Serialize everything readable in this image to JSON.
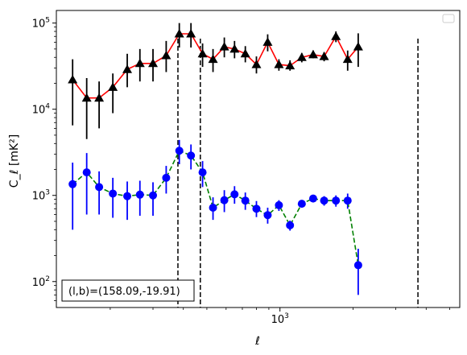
{
  "chart_data": {
    "type": "scatter",
    "xscale": "log",
    "yscale": "log",
    "xlim": [
      120,
      5500
    ],
    "ylim": [
      50,
      140000
    ],
    "xlabel": "ℓ",
    "ylabel": "C_ℓ [mK²]",
    "x_ticks": [
      {
        "value": 1000,
        "base": "10",
        "exp": "3"
      }
    ],
    "y_ticks": [
      {
        "value": 100,
        "base": "10",
        "exp": "2"
      },
      {
        "value": 1000,
        "base": "10",
        "exp": "3"
      },
      {
        "value": 10000,
        "base": "10",
        "exp": "4"
      },
      {
        "value": 100000,
        "base": "10",
        "exp": "5"
      }
    ],
    "grid": false,
    "legend": {
      "placement": "top-right",
      "entries": []
    },
    "vlines": [
      380,
      470,
      3700
    ],
    "annotation": "(l,b)=(158.09,-19.91)",
    "series": [
      {
        "marker": "triangle",
        "color": "#000000",
        "line_color": "#ff0000",
        "line_style": "solid",
        "points": [
          {
            "x": 140,
            "y": 22000,
            "lo": 6500,
            "hi": 38000
          },
          {
            "x": 160,
            "y": 13500,
            "lo": 4500,
            "hi": 23000
          },
          {
            "x": 180,
            "y": 13500,
            "lo": 6000,
            "hi": 21000
          },
          {
            "x": 205,
            "y": 18000,
            "lo": 9000,
            "hi": 26000
          },
          {
            "x": 235,
            "y": 29000,
            "lo": 18000,
            "hi": 44000
          },
          {
            "x": 265,
            "y": 34000,
            "lo": 21000,
            "hi": 50000
          },
          {
            "x": 300,
            "y": 34000,
            "lo": 21000,
            "hi": 50000
          },
          {
            "x": 340,
            "y": 42000,
            "lo": 27000,
            "hi": 62000
          },
          {
            "x": 385,
            "y": 75000,
            "lo": 52000,
            "hi": 100000
          },
          {
            "x": 430,
            "y": 75000,
            "lo": 52000,
            "hi": 100000
          },
          {
            "x": 480,
            "y": 44000,
            "lo": 31000,
            "hi": 58000
          },
          {
            "x": 530,
            "y": 38000,
            "lo": 27000,
            "hi": 50000
          },
          {
            "x": 590,
            "y": 53000,
            "lo": 40000,
            "hi": 68000
          },
          {
            "x": 650,
            "y": 50000,
            "lo": 39000,
            "hi": 62000
          },
          {
            "x": 720,
            "y": 44000,
            "lo": 35000,
            "hi": 54000
          },
          {
            "x": 800,
            "y": 33000,
            "lo": 26000,
            "hi": 41000
          },
          {
            "x": 890,
            "y": 60000,
            "lo": 47000,
            "hi": 74000
          },
          {
            "x": 990,
            "y": 33000,
            "lo": 28000,
            "hi": 38000
          },
          {
            "x": 1100,
            "y": 32000,
            "lo": 28000,
            "hi": 37000
          },
          {
            "x": 1230,
            "y": 40000,
            "lo": 35000,
            "hi": 45000
          },
          {
            "x": 1370,
            "y": 43000,
            "lo": 39000,
            "hi": 48000
          },
          {
            "x": 1520,
            "y": 41000,
            "lo": 36000,
            "hi": 46000
          },
          {
            "x": 1700,
            "y": 70000,
            "lo": 60000,
            "hi": 80000
          },
          {
            "x": 1900,
            "y": 38000,
            "lo": 28000,
            "hi": 48000
          },
          {
            "x": 2100,
            "y": 53000,
            "lo": 31000,
            "hi": 76000
          }
        ]
      },
      {
        "marker": "circle",
        "color": "#0000ff",
        "line_color": "#008000",
        "line_style": "dashed",
        "points": [
          {
            "x": 140,
            "y": 1350,
            "lo": 400,
            "hi": 2400
          },
          {
            "x": 160,
            "y": 1850,
            "lo": 600,
            "hi": 3100
          },
          {
            "x": 180,
            "y": 1250,
            "lo": 600,
            "hi": 1900
          },
          {
            "x": 205,
            "y": 1050,
            "lo": 550,
            "hi": 1600
          },
          {
            "x": 235,
            "y": 980,
            "lo": 520,
            "hi": 1450
          },
          {
            "x": 265,
            "y": 1020,
            "lo": 580,
            "hi": 1480
          },
          {
            "x": 300,
            "y": 1000,
            "lo": 580,
            "hi": 1420
          },
          {
            "x": 340,
            "y": 1600,
            "lo": 1050,
            "hi": 2200
          },
          {
            "x": 385,
            "y": 3300,
            "lo": 2300,
            "hi": 4400
          },
          {
            "x": 430,
            "y": 2900,
            "lo": 2000,
            "hi": 3900
          },
          {
            "x": 480,
            "y": 1850,
            "lo": 1250,
            "hi": 2500
          },
          {
            "x": 530,
            "y": 720,
            "lo": 520,
            "hi": 950
          },
          {
            "x": 590,
            "y": 880,
            "lo": 640,
            "hi": 1150
          },
          {
            "x": 650,
            "y": 1030,
            "lo": 800,
            "hi": 1280
          },
          {
            "x": 720,
            "y": 870,
            "lo": 680,
            "hi": 1080
          },
          {
            "x": 800,
            "y": 700,
            "lo": 560,
            "hi": 860
          },
          {
            "x": 890,
            "y": 590,
            "lo": 470,
            "hi": 720
          },
          {
            "x": 990,
            "y": 770,
            "lo": 660,
            "hi": 880
          },
          {
            "x": 1100,
            "y": 450,
            "lo": 390,
            "hi": 510
          },
          {
            "x": 1230,
            "y": 800,
            "lo": 720,
            "hi": 880
          },
          {
            "x": 1370,
            "y": 920,
            "lo": 830,
            "hi": 1010
          },
          {
            "x": 1520,
            "y": 870,
            "lo": 760,
            "hi": 980
          },
          {
            "x": 1700,
            "y": 870,
            "lo": 740,
            "hi": 1000
          },
          {
            "x": 1900,
            "y": 870,
            "lo": 700,
            "hi": 1050
          },
          {
            "x": 2100,
            "y": 155,
            "lo": 70,
            "hi": 240
          }
        ]
      }
    ]
  }
}
